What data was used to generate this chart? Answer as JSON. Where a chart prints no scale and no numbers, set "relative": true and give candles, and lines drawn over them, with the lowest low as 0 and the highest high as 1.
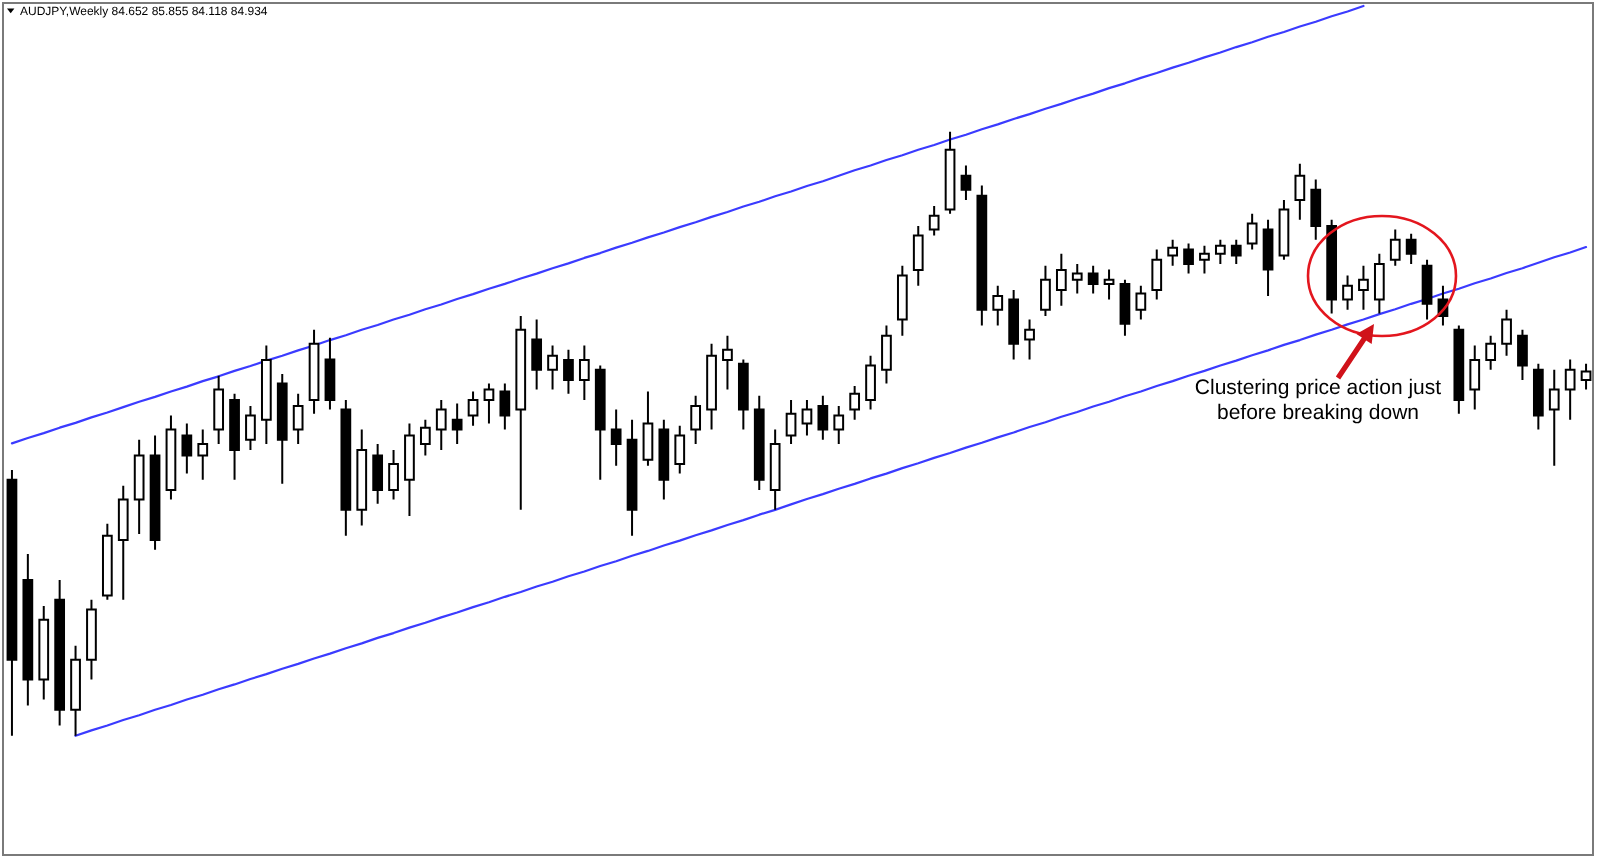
{
  "chart_data": {
    "type": "candlestick",
    "title": "AUDJPY,Weekly 84.652 85.855 84.118 84.934",
    "relative": true,
    "color": "#000000",
    "categories": [
      null,
      null,
      null,
      null,
      null,
      null,
      null,
      null,
      null,
      null,
      null,
      null,
      null,
      null,
      null,
      null,
      null,
      null,
      null,
      null,
      null,
      null,
      null,
      null,
      null,
      null,
      null,
      null,
      null,
      null,
      null,
      null,
      null,
      null,
      null,
      null,
      null,
      null,
      null,
      null,
      null,
      null,
      null,
      null,
      null,
      null,
      null,
      null,
      null,
      null,
      null,
      null,
      null,
      null,
      null,
      null,
      null,
      null,
      null,
      null,
      null,
      null,
      null,
      null,
      null,
      null,
      null,
      null,
      null,
      null,
      null,
      null,
      null,
      null,
      null,
      null,
      null,
      null,
      null,
      null,
      null,
      null,
      null,
      null,
      null,
      null,
      null,
      null,
      null,
      null,
      null,
      null,
      null,
      null,
      null,
      null,
      null,
      null,
      null,
      null
    ],
    "ohlc": [
      [
        0.424,
        0.44,
        0,
        0.126
      ],
      [
        0.258,
        0.301,
        0.05,
        0.093
      ],
      [
        0.093,
        0.215,
        0.06,
        0.192
      ],
      [
        0.225,
        0.258,
        0.017,
        0.043
      ],
      [
        0.043,
        0.149,
        0,
        0.126
      ],
      [
        0.126,
        0.225,
        0.093,
        0.209
      ],
      [
        0.232,
        0.351,
        0.225,
        0.331
      ],
      [
        0.324,
        0.414,
        0.225,
        0.391
      ],
      [
        0.391,
        0.49,
        0.334,
        0.464
      ],
      [
        0.464,
        0.497,
        0.308,
        0.324
      ],
      [
        0.407,
        0.53,
        0.391,
        0.507
      ],
      [
        0.497,
        0.517,
        0.434,
        0.464
      ],
      [
        0.464,
        0.507,
        0.424,
        0.483
      ],
      [
        0.507,
        0.596,
        0.483,
        0.573
      ],
      [
        0.556,
        0.566,
        0.424,
        0.473
      ],
      [
        0.49,
        0.546,
        0.473,
        0.53
      ],
      [
        0.523,
        0.646,
        0.483,
        0.622
      ],
      [
        0.583,
        0.599,
        0.417,
        0.49
      ],
      [
        0.507,
        0.566,
        0.483,
        0.546
      ],
      [
        0.556,
        0.672,
        0.533,
        0.649
      ],
      [
        0.623,
        0.659,
        0.54,
        0.556
      ],
      [
        0.54,
        0.556,
        0.331,
        0.374
      ],
      [
        0.374,
        0.507,
        0.348,
        0.473
      ],
      [
        0.464,
        0.483,
        0.384,
        0.407
      ],
      [
        0.407,
        0.473,
        0.391,
        0.45
      ],
      [
        0.424,
        0.517,
        0.364,
        0.497
      ],
      [
        0.483,
        0.523,
        0.464,
        0.51
      ],
      [
        0.507,
        0.556,
        0.473,
        0.54
      ],
      [
        0.523,
        0.55,
        0.483,
        0.507
      ],
      [
        0.53,
        0.57,
        0.513,
        0.556
      ],
      [
        0.556,
        0.583,
        0.517,
        0.573
      ],
      [
        0.57,
        0.583,
        0.507,
        0.53
      ],
      [
        0.54,
        0.695,
        0.374,
        0.672
      ],
      [
        0.656,
        0.689,
        0.573,
        0.606
      ],
      [
        0.606,
        0.646,
        0.573,
        0.629
      ],
      [
        0.622,
        0.639,
        0.566,
        0.589
      ],
      [
        0.589,
        0.646,
        0.556,
        0.622
      ],
      [
        0.606,
        0.613,
        0.424,
        0.507
      ],
      [
        0.507,
        0.54,
        0.447,
        0.483
      ],
      [
        0.49,
        0.523,
        0.331,
        0.374
      ],
      [
        0.457,
        0.57,
        0.447,
        0.517
      ],
      [
        0.507,
        0.523,
        0.391,
        0.424
      ],
      [
        0.45,
        0.513,
        0.434,
        0.497
      ],
      [
        0.507,
        0.563,
        0.483,
        0.546
      ],
      [
        0.54,
        0.649,
        0.507,
        0.629
      ],
      [
        0.622,
        0.662,
        0.573,
        0.639
      ],
      [
        0.616,
        0.623,
        0.507,
        0.54
      ],
      [
        0.54,
        0.563,
        0.407,
        0.424
      ],
      [
        0.407,
        0.507,
        0.374,
        0.483
      ],
      [
        0.497,
        0.556,
        0.483,
        0.533
      ],
      [
        0.517,
        0.556,
        0.497,
        0.54
      ],
      [
        0.546,
        0.563,
        0.49,
        0.507
      ],
      [
        0.507,
        0.546,
        0.483,
        0.53
      ],
      [
        0.54,
        0.579,
        0.523,
        0.566
      ],
      [
        0.556,
        0.629,
        0.54,
        0.613
      ],
      [
        0.606,
        0.679,
        0.583,
        0.662
      ],
      [
        0.689,
        0.778,
        0.662,
        0.762
      ],
      [
        0.771,
        0.844,
        0.745,
        0.828
      ],
      [
        0.838,
        0.877,
        0.828,
        0.861
      ],
      [
        0.871,
        1,
        0.864,
        0.97
      ],
      [
        0.927,
        0.944,
        0.887,
        0.904
      ],
      [
        0.894,
        0.911,
        0.679,
        0.705
      ],
      [
        0.705,
        0.745,
        0.679,
        0.728
      ],
      [
        0.722,
        0.738,
        0.623,
        0.649
      ],
      [
        0.656,
        0.689,
        0.623,
        0.672
      ],
      [
        0.705,
        0.778,
        0.695,
        0.755
      ],
      [
        0.738,
        0.798,
        0.712,
        0.771
      ],
      [
        0.755,
        0.781,
        0.732,
        0.765
      ],
      [
        0.765,
        0.778,
        0.732,
        0.748
      ],
      [
        0.748,
        0.772,
        0.722,
        0.755
      ],
      [
        0.748,
        0.755,
        0.662,
        0.682
      ],
      [
        0.705,
        0.745,
        0.689,
        0.732
      ],
      [
        0.738,
        0.805,
        0.722,
        0.788
      ],
      [
        0.795,
        0.821,
        0.778,
        0.808
      ],
      [
        0.805,
        0.815,
        0.765,
        0.781
      ],
      [
        0.788,
        0.811,
        0.765,
        0.798
      ],
      [
        0.798,
        0.821,
        0.781,
        0.811
      ],
      [
        0.811,
        0.821,
        0.781,
        0.795
      ],
      [
        0.815,
        0.864,
        0.805,
        0.848
      ],
      [
        0.838,
        0.854,
        0.728,
        0.772
      ],
      [
        0.795,
        0.887,
        0.788,
        0.871
      ],
      [
        0.887,
        0.947,
        0.854,
        0.927
      ],
      [
        0.904,
        0.921,
        0.821,
        0.844
      ],
      [
        0.844,
        0.854,
        0.699,
        0.722
      ],
      [
        0.722,
        0.762,
        0.705,
        0.745
      ],
      [
        0.738,
        0.778,
        0.705,
        0.755
      ],
      [
        0.722,
        0.798,
        0.699,
        0.781
      ],
      [
        0.788,
        0.838,
        0.778,
        0.821
      ],
      [
        0.821,
        0.831,
        0.781,
        0.798
      ],
      [
        0.778,
        0.788,
        0.689,
        0.715
      ],
      [
        0.722,
        0.745,
        0.679,
        0.695
      ],
      [
        0.672,
        0.679,
        0.533,
        0.556
      ],
      [
        0.573,
        0.646,
        0.54,
        0.622
      ],
      [
        0.622,
        0.662,
        0.606,
        0.649
      ],
      [
        0.649,
        0.705,
        0.629,
        0.689
      ],
      [
        0.662,
        0.672,
        0.589,
        0.613
      ],
      [
        0.606,
        0.616,
        0.507,
        0.53
      ],
      [
        0.54,
        0.606,
        0.447,
        0.573
      ],
      [
        0.573,
        0.623,
        0.523,
        0.606
      ],
      [
        0.589,
        0.616,
        0.573,
        0.603
      ]
    ],
    "series": [
      {
        "type": "line",
        "color": "#3b3bff",
        "values": [
          0.484,
          0.493,
          0.501,
          0.51,
          0.518,
          0.527,
          0.535,
          0.544,
          0.553,
          0.561,
          0.57,
          0.578,
          0.587,
          0.595,
          0.604,
          0.612,
          0.621,
          0.629,
          0.638,
          0.646,
          0.655,
          0.663,
          0.672,
          0.68,
          0.689,
          0.697,
          0.706,
          0.714,
          0.723,
          0.731,
          0.74,
          0.748,
          0.757,
          0.765,
          0.774,
          0.782,
          0.791,
          0.799,
          0.808,
          0.816,
          0.825,
          0.833,
          0.842,
          0.85,
          0.859,
          0.867,
          0.876,
          0.884,
          0.893,
          0.901,
          0.91,
          0.918,
          0.927,
          0.936,
          0.944,
          0.953,
          0.961,
          0.97,
          0.978,
          0.987,
          0.995,
          1.004,
          1.012,
          1.021,
          1.029,
          1.038,
          1.046,
          1.055,
          1.063,
          1.072,
          1.08,
          1.089,
          1.097,
          1.106,
          1.114,
          1.123,
          1.131,
          1.14,
          1.148,
          1.157,
          1.165,
          1.174,
          1.182,
          1.191,
          1.199,
          1.208,
          null,
          null,
          null,
          null,
          null,
          null,
          null,
          null,
          null,
          null,
          null,
          null,
          null,
          null
        ]
      },
      {
        "type": "line",
        "color": "#3b3bff",
        "values": [
          null,
          null,
          null,
          null,
          0,
          0.009,
          0.017,
          0.026,
          0.034,
          0.043,
          0.051,
          0.06,
          0.068,
          0.077,
          0.085,
          0.094,
          0.102,
          0.111,
          0.119,
          0.128,
          0.136,
          0.145,
          0.153,
          0.162,
          0.17,
          0.179,
          0.187,
          0.196,
          0.204,
          0.213,
          0.221,
          0.23,
          0.238,
          0.247,
          0.255,
          0.264,
          0.272,
          0.281,
          0.289,
          0.298,
          0.306,
          0.315,
          0.323,
          0.332,
          0.34,
          0.349,
          0.357,
          0.366,
          0.374,
          0.383,
          0.392,
          0.4,
          0.409,
          0.417,
          0.426,
          0.434,
          0.443,
          0.451,
          0.46,
          0.468,
          0.477,
          0.485,
          0.494,
          0.502,
          0.511,
          0.519,
          0.528,
          0.536,
          0.545,
          0.553,
          0.562,
          0.57,
          0.579,
          0.587,
          0.596,
          0.604,
          0.613,
          0.621,
          0.63,
          0.638,
          0.647,
          0.655,
          0.664,
          0.672,
          0.681,
          0.689,
          0.698,
          0.706,
          0.715,
          0.723,
          0.732,
          0.74,
          0.749,
          0.757,
          0.766,
          0.774,
          0.783,
          0.792,
          0.8,
          0.809
        ]
      }
    ],
    "annotations": [
      "Clustering price action just before breaking down"
    ]
  }
}
